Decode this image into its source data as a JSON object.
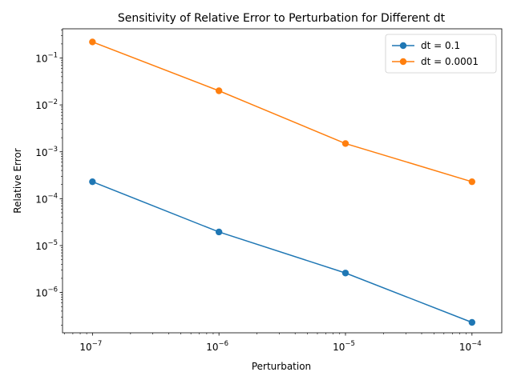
{
  "chart_data": {
    "type": "line",
    "title": "Sensitivity of Relative Error to Perturbation for Different dt",
    "xlabel": "Perturbation",
    "ylabel": "Relative Error",
    "xscale": "log",
    "yscale": "log",
    "x": [
      1e-07,
      1e-06,
      1e-05,
      0.0001
    ],
    "series": [
      {
        "name": "dt = 0.1",
        "color": "#1f77b4",
        "values": [
          0.00023,
          1.95e-05,
          2.6e-06,
          2.3e-07
        ]
      },
      {
        "name": "dt = 0.0001",
        "color": "#ff7f0e",
        "values": [
          0.22,
          0.02,
          0.0015,
          0.00023
        ]
      }
    ],
    "xticks": [
      {
        "value": 1e-07,
        "base": "10",
        "exp": "−7"
      },
      {
        "value": 1e-06,
        "base": "10",
        "exp": "−6"
      },
      {
        "value": 1e-05,
        "base": "10",
        "exp": "−5"
      },
      {
        "value": 0.0001,
        "base": "10",
        "exp": "−4"
      }
    ],
    "yticks": [
      {
        "value": 1e-06,
        "base": "10",
        "exp": "−6"
      },
      {
        "value": 1e-05,
        "base": "10",
        "exp": "−5"
      },
      {
        "value": 0.0001,
        "base": "10",
        "exp": "−4"
      },
      {
        "value": 0.001,
        "base": "10",
        "exp": "−3"
      },
      {
        "value": 0.01,
        "base": "10",
        "exp": "−2"
      },
      {
        "value": 0.1,
        "base": "10",
        "exp": "−1"
      }
    ],
    "xlim": [
      5.8e-08,
      0.000172
    ],
    "ylim": [
      1.38e-07,
      0.42
    ],
    "grid": false,
    "legend": "top-right"
  }
}
